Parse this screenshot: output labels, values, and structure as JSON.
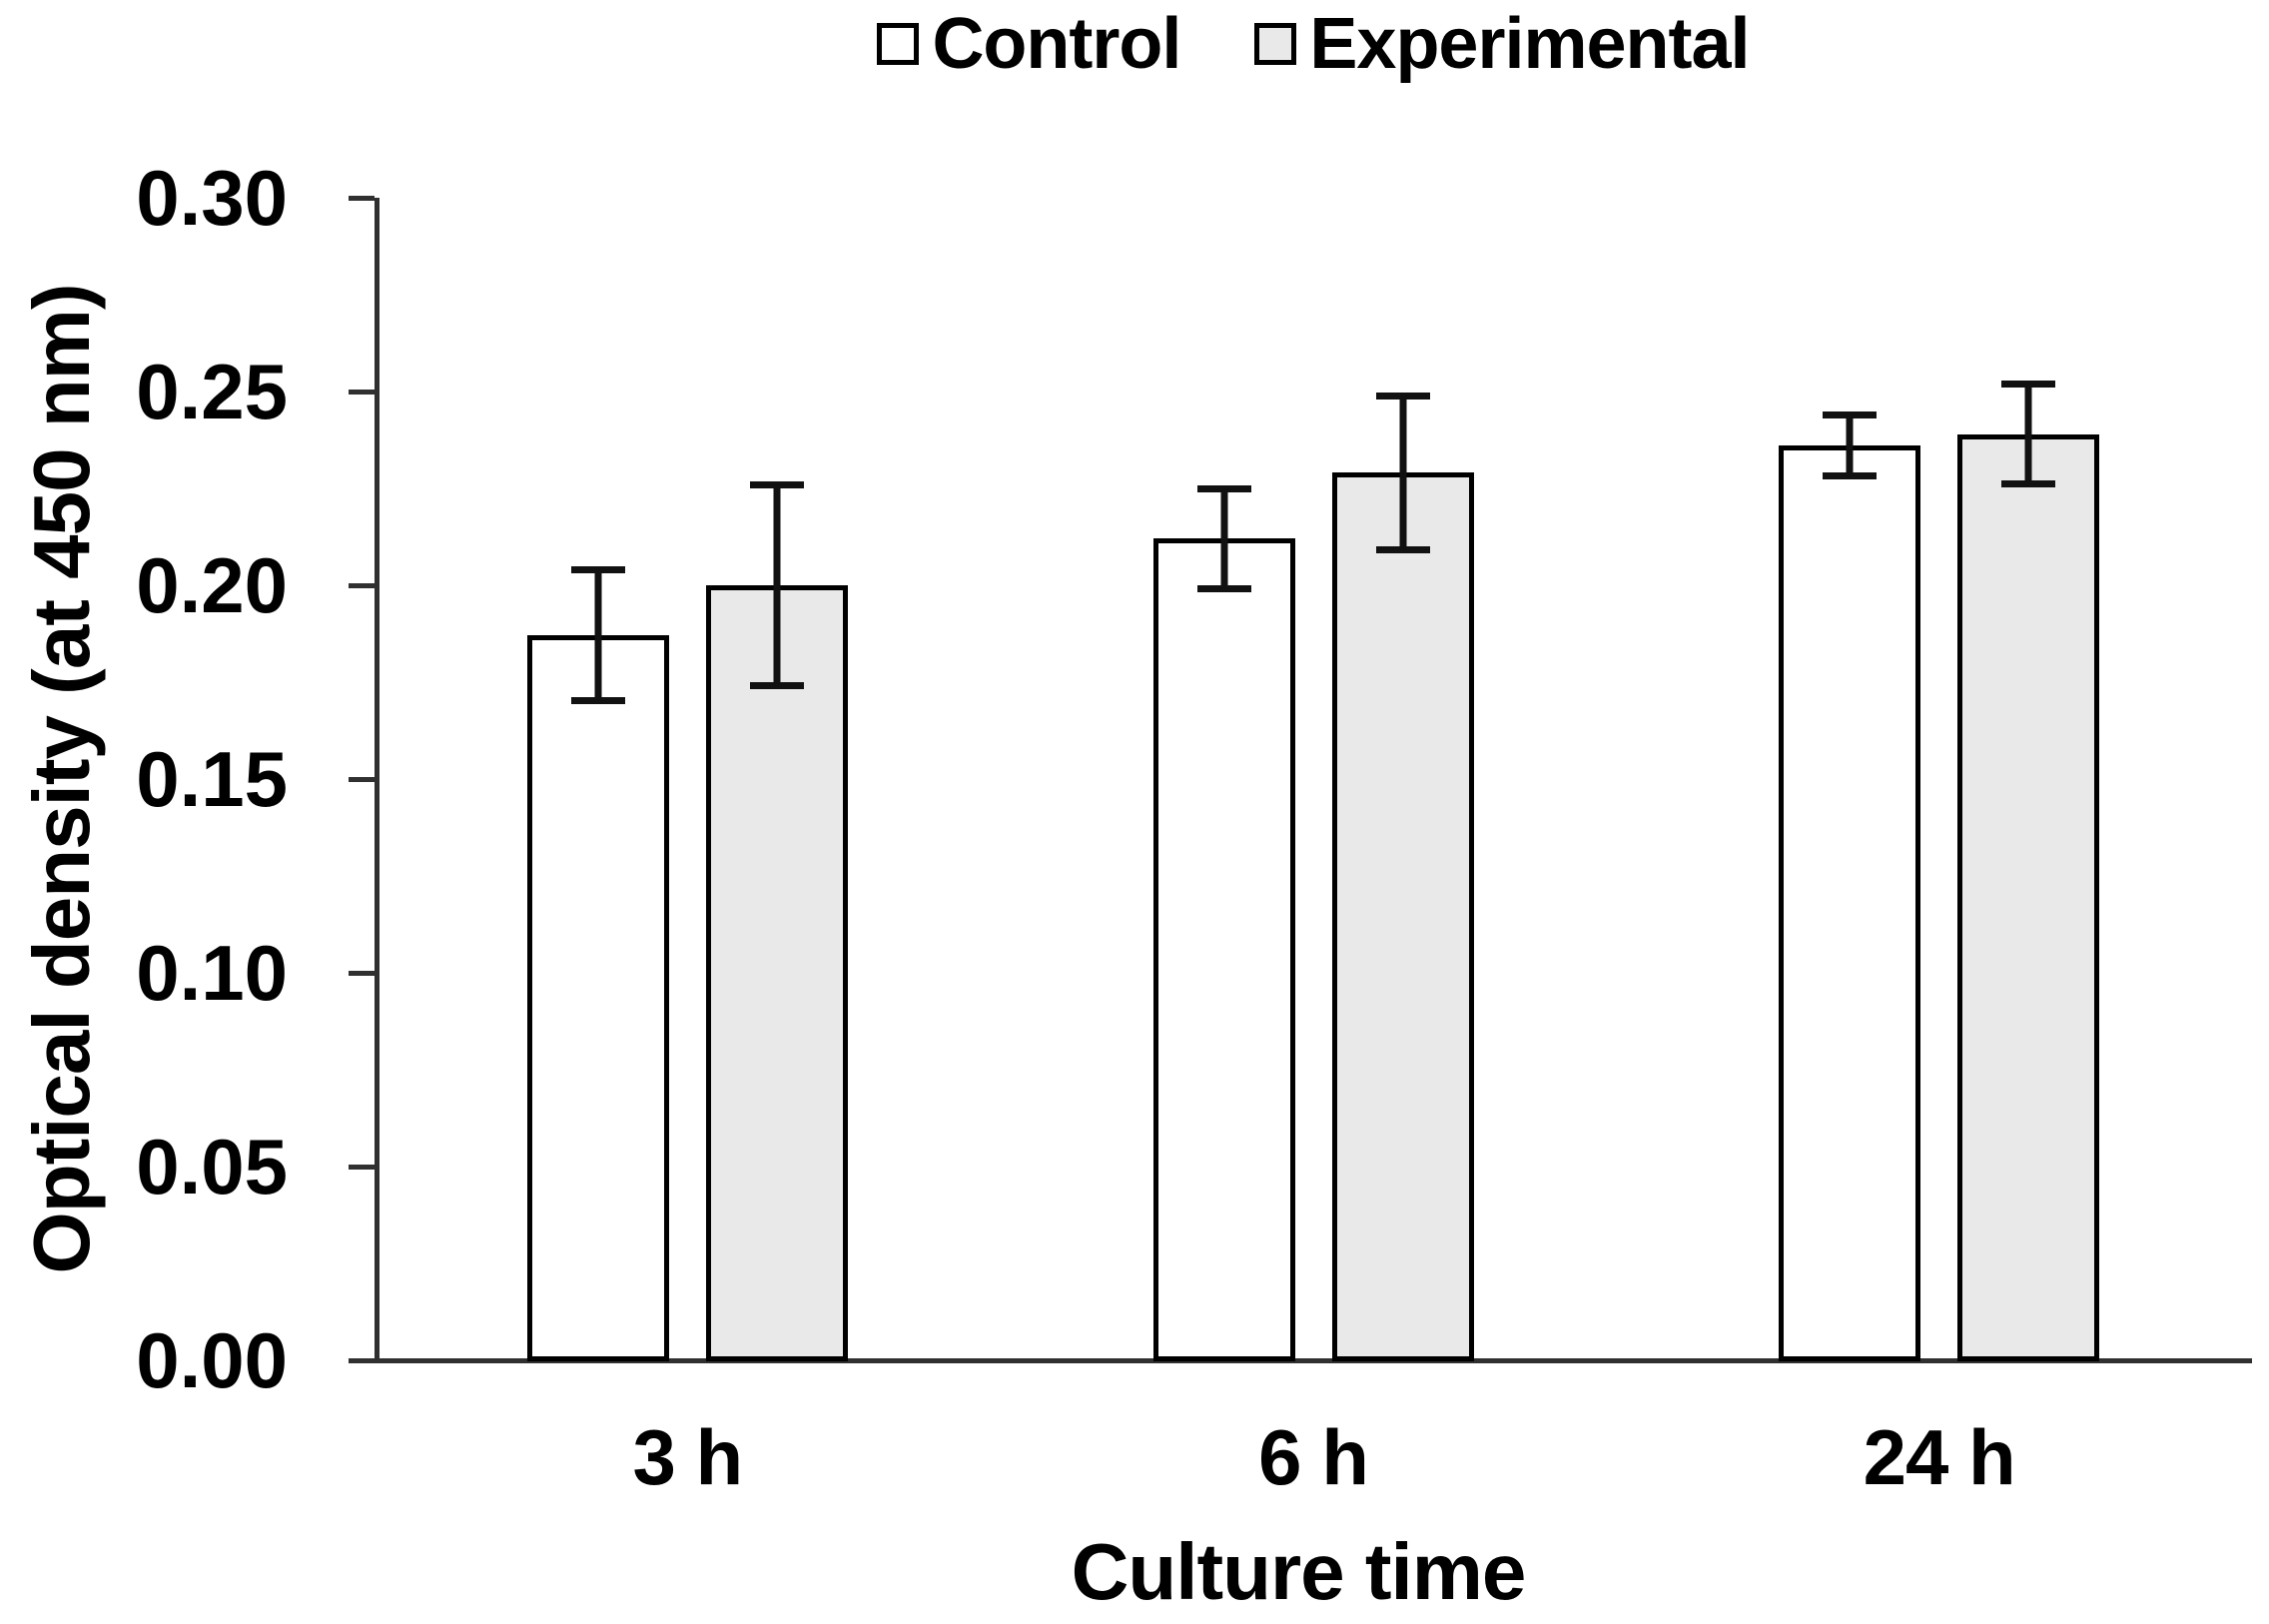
{
  "chart_data": {
    "type": "bar",
    "categories": [
      "3 h",
      "6 h",
      "24 h"
    ],
    "series": [
      {
        "name": "Control",
        "fill": "#ffffff",
        "values": [
          0.187,
          0.212,
          0.236
        ],
        "errors": [
          0.017,
          0.013,
          0.008
        ]
      },
      {
        "name": "Experimental",
        "fill": "#e9e9e9",
        "values": [
          0.2,
          0.229,
          0.239
        ],
        "errors": [
          0.026,
          0.02,
          0.013
        ]
      }
    ],
    "xlabel": "Culture time",
    "ylabel": "Optical density (at 450 nm)",
    "ylim": [
      0,
      0.3
    ],
    "ytick_step": 0.05,
    "ytick_labels": [
      "0.00",
      "0.05",
      "0.10",
      "0.15",
      "0.20",
      "0.25",
      "0.30"
    ],
    "grid": false,
    "legend_position": "top-center",
    "colors": {
      "bar_border": "#000000",
      "axis": "#303030",
      "error_bar": "#111111",
      "text": "#000000",
      "control_fill": "#ffffff",
      "experimental_fill": "#e9e9e9"
    }
  }
}
